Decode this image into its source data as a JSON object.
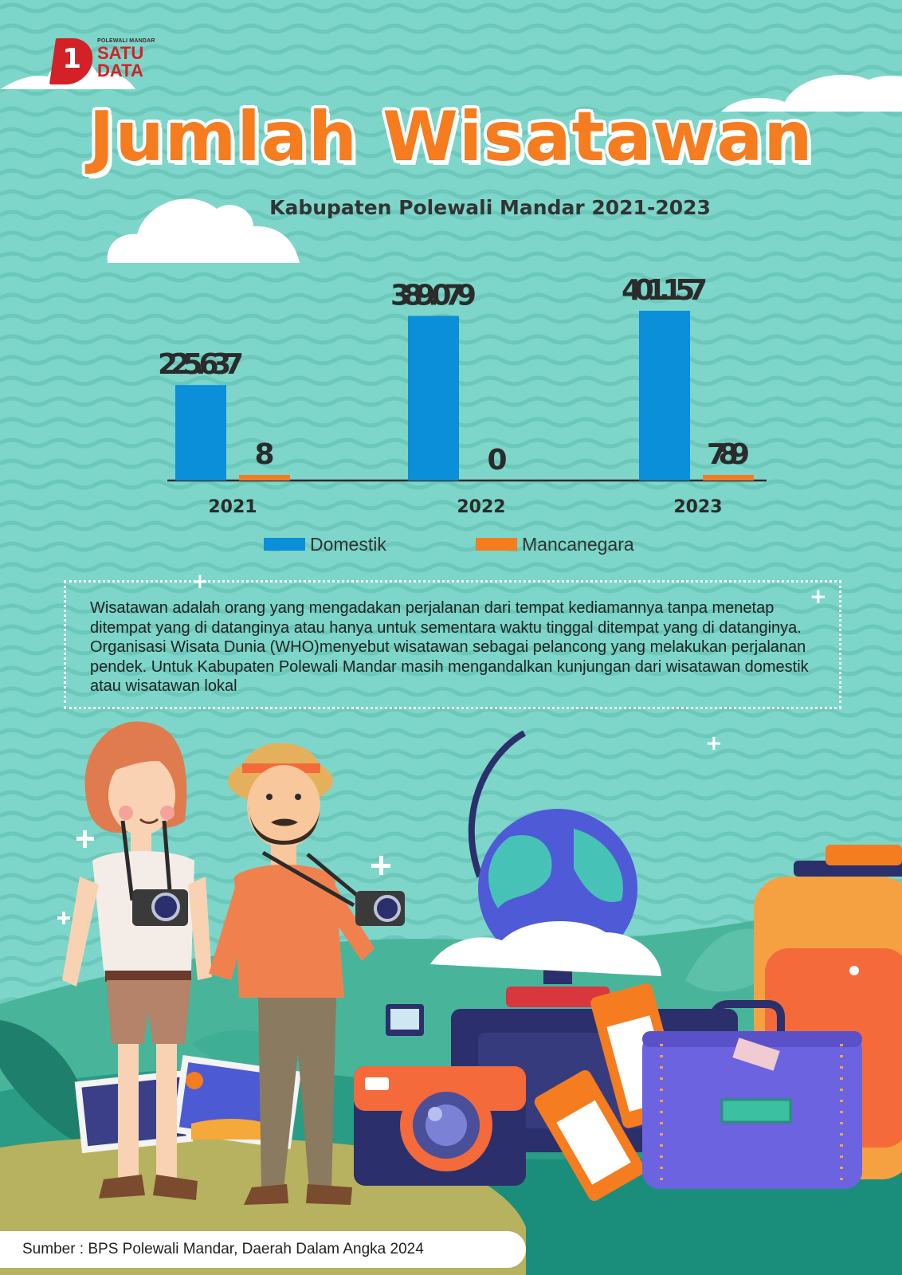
{
  "logo": {
    "small_text": "POLEWALI MANDAR",
    "line1": "SATU",
    "line2": "DATA",
    "mark": "1"
  },
  "title": "Jumlah Wisatawan",
  "subtitle": "Kabupaten Polewali Mandar 2021-2023",
  "colors": {
    "background": "#7dd6c9",
    "domestic": "#0a8fd8",
    "foreign": "#f57c1f",
    "title": "#f57c1f"
  },
  "chart_data": {
    "type": "bar",
    "title": "Jumlah Wisatawan",
    "subtitle": "Kabupaten Polewali Mandar 2021-2023",
    "categories": [
      "2021",
      "2022",
      "2023"
    ],
    "series": [
      {
        "name": "Domestik",
        "values": [
          225637,
          389079,
          401157
        ],
        "labels": [
          "225.637",
          "389.079",
          "401.157"
        ],
        "color": "#0a8fd8"
      },
      {
        "name": "Mancanegara",
        "values": [
          8,
          0,
          789
        ],
        "labels": [
          "8",
          "0",
          "789"
        ],
        "color": "#f57c1f"
      }
    ],
    "ylim": [
      0,
      420000
    ],
    "grid": false,
    "legend_position": "bottom"
  },
  "legend": [
    {
      "label": "Domestik",
      "color": "#0a8fd8"
    },
    {
      "label": "Mancanegara",
      "color": "#f57c1f"
    }
  ],
  "description": "Wisatawan adalah orang yang mengadakan perjalanan dari tempat kediamannya tanpa menetap ditempat yang di datanginya atau hanya untuk sementara waktu tinggal ditempat yang di datanginya. Organisasi Wisata Dunia (WHO)menyebut wisatawan sebagai pelancong yang melakukan perjalanan pendek. Untuk Kabupaten Polewali Mandar masih mengandalkan kunjungan dari wisatawan domestik atau wisatawan lokal",
  "source": "Sumber : BPS Polewali Mandar, Daerah Dalam Angka 2024"
}
